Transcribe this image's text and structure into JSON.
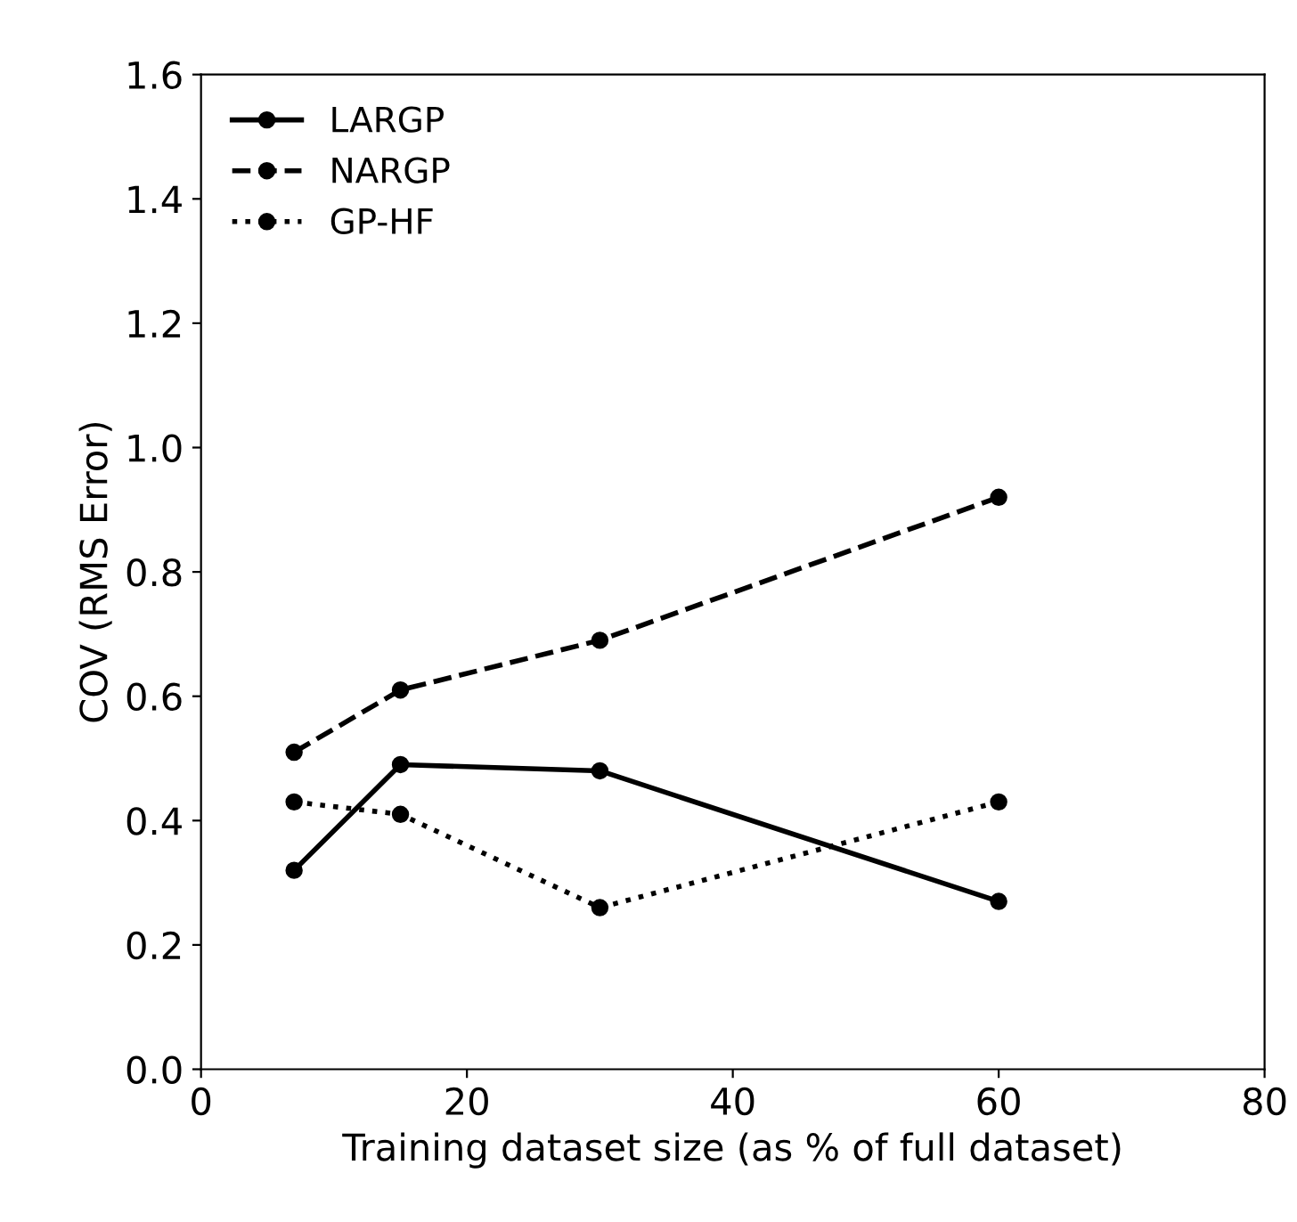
{
  "chart_data": {
    "type": "line",
    "xlabel": "Training dataset size (as % of full dataset)",
    "ylabel": "COV (RMS Error)",
    "x": [
      7,
      15,
      30,
      60
    ],
    "series": [
      {
        "name": "LARGP",
        "color": "#000000",
        "line_style": "solid",
        "values": [
          0.32,
          0.49,
          0.48,
          0.27
        ]
      },
      {
        "name": "NARGP",
        "color": "#000000",
        "line_style": "dashed",
        "values": [
          0.51,
          0.61,
          0.69,
          0.92
        ]
      },
      {
        "name": "GP-HF",
        "color": "#000000",
        "line_style": "dotted",
        "values": [
          0.43,
          0.41,
          0.26,
          0.43
        ]
      }
    ],
    "xlim": [
      0,
      80
    ],
    "xticks": [
      0,
      20,
      40,
      60,
      80
    ],
    "ylim": [
      0,
      1.6
    ],
    "yticks": [
      {
        "value": 0,
        "label": "0.0"
      },
      {
        "value": 0.2,
        "label": "0.2"
      },
      {
        "value": 0.4,
        "label": "0.4"
      },
      {
        "value": 0.6,
        "label": "0.6"
      },
      {
        "value": 0.8,
        "label": "0.8"
      },
      {
        "value": 1.0,
        "label": "1.0"
      },
      {
        "value": 1.2,
        "label": "1.2"
      },
      {
        "value": 1.4,
        "label": "1.4"
      },
      {
        "value": 1.6,
        "label": "1.6"
      }
    ],
    "marker": "circle",
    "grid": false,
    "legend": "top left"
  }
}
